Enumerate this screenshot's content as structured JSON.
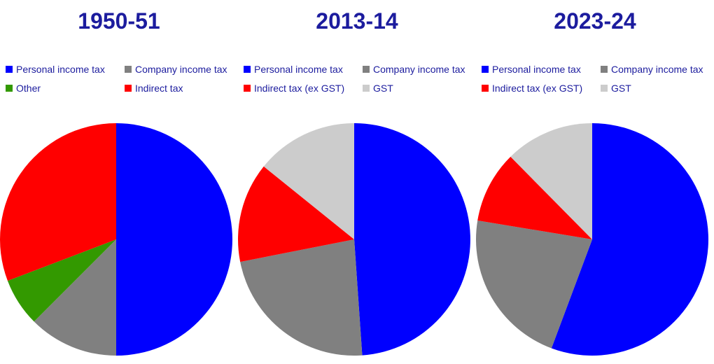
{
  "theme": {
    "background": "#ffffff",
    "text_color": "#1c1c9e",
    "colors": {
      "personal_income_tax": "#0000ff",
      "company_income_tax": "#808080",
      "other": "#339900",
      "indirect_tax": "#ff0000",
      "gst": "#cccccc"
    }
  },
  "chart_data": [
    {
      "type": "pie",
      "title": "1950-51",
      "start_angle_deg": 0,
      "direction": "clockwise",
      "legend_position": "top",
      "legend_columns": 2,
      "slices": [
        {
          "label": "Personal income tax",
          "value": 50.0,
          "color": "#0000ff"
        },
        {
          "label": "Company income tax",
          "value": 12.5,
          "color": "#808080"
        },
        {
          "label": "Other",
          "value": 6.7,
          "color": "#339900"
        },
        {
          "label": "Indirect tax",
          "value": 30.8,
          "color": "#ff0000"
        }
      ]
    },
    {
      "type": "pie",
      "title": "2013-14",
      "start_angle_deg": 0,
      "direction": "clockwise",
      "legend_position": "top",
      "legend_columns": 2,
      "slices": [
        {
          "label": "Personal income tax",
          "value": 48.9,
          "color": "#0000ff"
        },
        {
          "label": "Company income tax",
          "value": 23.0,
          "color": "#808080"
        },
        {
          "label": "Indirect tax (ex GST)",
          "value": 13.9,
          "color": "#ff0000"
        },
        {
          "label": "GST",
          "value": 14.2,
          "color": "#cccccc"
        }
      ]
    },
    {
      "type": "pie",
      "title": "2023-24",
      "start_angle_deg": 0,
      "direction": "clockwise",
      "legend_position": "top",
      "legend_columns": 2,
      "slices": [
        {
          "label": "Personal income tax",
          "value": 55.7,
          "color": "#0000ff"
        },
        {
          "label": "Company income tax",
          "value": 21.9,
          "color": "#808080"
        },
        {
          "label": "Indirect tax (ex GST)",
          "value": 10.0,
          "color": "#ff0000"
        },
        {
          "label": "GST",
          "value": 12.4,
          "color": "#cccccc"
        }
      ]
    }
  ]
}
